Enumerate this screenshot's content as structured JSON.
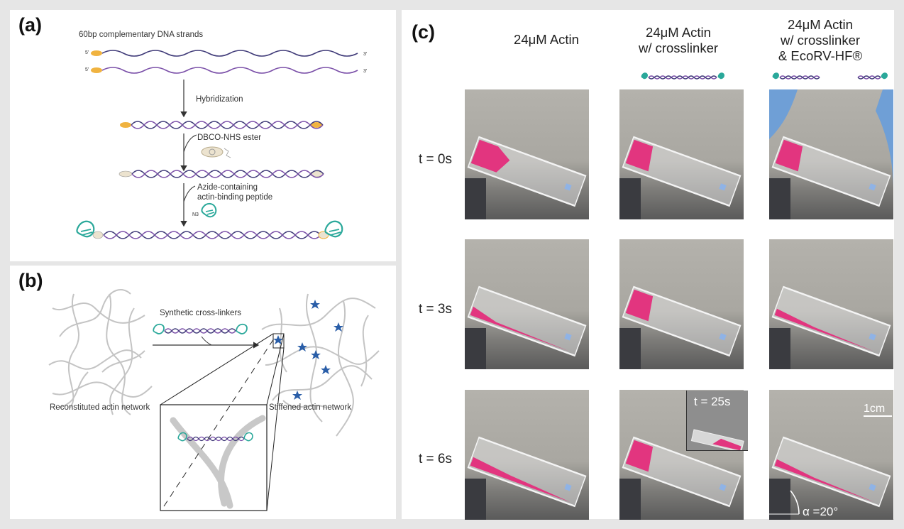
{
  "panels": {
    "a": {
      "label": "(a)",
      "title": "60bp complementary DNA strands",
      "end_5a": "5'",
      "end_3a": "3'",
      "end_5b": "5'",
      "end_3b": "3'",
      "step1": "Hybridization",
      "step2": "DBCO-NHS ester",
      "step3_line1": "Azide-containing",
      "step3_line2": "actin-binding peptide",
      "azide": "N3"
    },
    "b": {
      "label": "(b)",
      "arrow_label": "Synthetic cross-linkers",
      "left_caption": "Reconstituted actin network",
      "right_caption": "Stiffened actin network"
    },
    "c": {
      "label": "(c)",
      "columns": [
        {
          "line1": "24μM Actin",
          "line2": "",
          "line3": ""
        },
        {
          "line1": "24μM Actin",
          "line2": "w/ crosslinker",
          "line3": ""
        },
        {
          "line1": "24μM Actin",
          "line2": "w/ crosslinker",
          "line3": "& EcoRV-HF®"
        }
      ],
      "rows": [
        "t = 0s",
        "t = 3s",
        "t = 6s"
      ],
      "inset_label": "t = 25s",
      "scale_label": "1cm",
      "angle_label": "α =20°"
    }
  },
  "colors": {
    "dna_purple": "#7a4fa8",
    "dna_dark": "#3f3a78",
    "peptide_teal": "#2aa89a",
    "dye_pink": "#e2357f",
    "fiber_gray": "#c4c4c4",
    "crosslinker_blue": "#2a5ea8"
  }
}
